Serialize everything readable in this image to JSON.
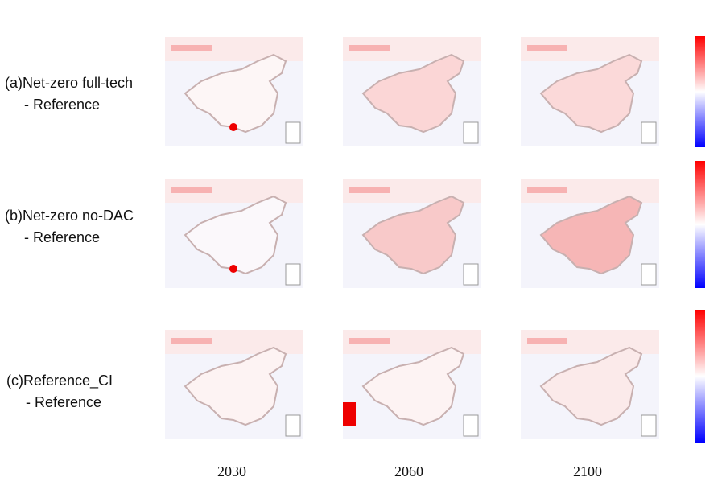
{
  "rows": [
    {
      "label": "(a)Net-zero full-tech",
      "sub": "- Reference"
    },
    {
      "label": "(b)Net-zero no-DAC",
      "sub": "- Reference"
    },
    {
      "label": "(c)Reference_CI",
      "sub": "- Reference"
    }
  ],
  "years": [
    "2030",
    "2060",
    "2100"
  ],
  "colors": {
    "positive": "#ff0000",
    "zero": "#ffffff",
    "negative": "#0000ff"
  }
}
